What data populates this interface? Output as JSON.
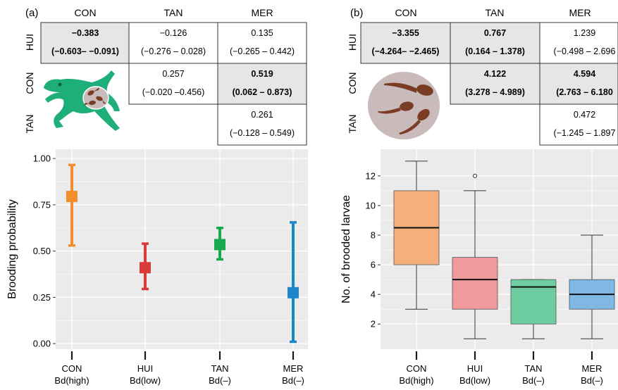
{
  "panel_a": {
    "label": "(a)",
    "col_headers": [
      "CON",
      "TAN",
      "MER"
    ],
    "row_headers": [
      "HUI",
      "CON",
      "TAN"
    ],
    "cells": [
      {
        "row": 0,
        "col": 0,
        "value": "−0.383",
        "ci": "(−0.603– −0.091)",
        "bold": true,
        "shaded": true
      },
      {
        "row": 0,
        "col": 1,
        "value": "−0.126",
        "ci": "(−0.276 – 0.028)",
        "bold": false,
        "shaded": false
      },
      {
        "row": 0,
        "col": 2,
        "value": "0.135",
        "ci": "(−0.265 – 0.442)",
        "bold": false,
        "shaded": false
      },
      {
        "row": 1,
        "col": 1,
        "value": "0.257",
        "ci": "(−0.020 –0.456)",
        "bold": false,
        "shaded": false
      },
      {
        "row": 1,
        "col": 2,
        "value": "0.519",
        "ci": "(0.062 – 0.873)",
        "bold": true,
        "shaded": true
      },
      {
        "row": 2,
        "col": 2,
        "value": "0.261",
        "ci": "(−0.128 – 0.549)",
        "bold": false,
        "shaded": false
      }
    ]
  },
  "panel_b": {
    "label": "(b)",
    "col_headers": [
      "CON",
      "TAN",
      "MER"
    ],
    "row_headers": [
      "HUI",
      "CON",
      "TAN"
    ],
    "cells": [
      {
        "row": 0,
        "col": 0,
        "value": "−3.355",
        "ci": "(−4.264– −2.465)",
        "bold": true,
        "shaded": true
      },
      {
        "row": 0,
        "col": 1,
        "value": "0.767",
        "ci": "(0.164 – 1.378)",
        "bold": true,
        "shaded": true
      },
      {
        "row": 0,
        "col": 2,
        "value": "1.239",
        "ci": "(−0.498 – 2.696",
        "bold": false,
        "shaded": false
      },
      {
        "row": 1,
        "col": 1,
        "value": "4.122",
        "ci": "(3.278 – 4.989)",
        "bold": true,
        "shaded": true
      },
      {
        "row": 1,
        "col": 2,
        "value": "4.594",
        "ci": "(2.763 – 6.180",
        "bold": true,
        "shaded": true
      },
      {
        "row": 2,
        "col": 2,
        "value": "0.472",
        "ci": "(−1.245 – 1.897",
        "bold": false,
        "shaded": false
      }
    ]
  },
  "colors": {
    "CON": "#F28E2B",
    "HUI": "#D93A3A",
    "TAN": "#18A84E",
    "MER": "#1B87C9",
    "panel_bg": "#EBEBEB",
    "grid": "#ffffff",
    "frog": "#1DAE79",
    "egg_disc": "#C9BABC",
    "tadpole": "#7A3C24",
    "shade": "#E6E6E6"
  },
  "chart_data": [
    {
      "type": "scatter",
      "subtype": "point-with-error-bars",
      "ylabel": "Brooding probability",
      "xlabel": "",
      "ylim": [
        -0.03,
        1.05
      ],
      "yticks": [
        "0.00",
        "0.25",
        "0.50",
        "0.75",
        "1.00"
      ],
      "ytick_values": [
        0,
        0.25,
        0.5,
        0.75,
        1.0
      ],
      "categories": [
        {
          "name": "CON",
          "sub": "Bd(high)"
        },
        {
          "name": "HUI",
          "sub": "Bd(low)"
        },
        {
          "name": "TAN",
          "sub": "Bd(–)"
        },
        {
          "name": "MER",
          "sub": "Bd(–)"
        }
      ],
      "points": [
        {
          "category": "CON",
          "estimate": 0.795,
          "lower": 0.53,
          "upper": 0.965
        },
        {
          "category": "HUI",
          "estimate": 0.41,
          "lower": 0.295,
          "upper": 0.54
        },
        {
          "category": "TAN",
          "estimate": 0.535,
          "lower": 0.455,
          "upper": 0.625
        },
        {
          "category": "MER",
          "estimate": 0.275,
          "lower": 0.01,
          "upper": 0.655
        }
      ],
      "grid": true
    },
    {
      "type": "box",
      "ylabel": "No. of brooded larvae",
      "xlabel": "",
      "ylim": [
        0.3,
        13.8
      ],
      "yticks": [
        "2",
        "4",
        "6",
        "8",
        "10",
        "12"
      ],
      "ytick_values": [
        2,
        4,
        6,
        8,
        10,
        12
      ],
      "categories": [
        {
          "name": "CON",
          "sub": "Bd(high)"
        },
        {
          "name": "HUI",
          "sub": "Bd(low)"
        },
        {
          "name": "TAN",
          "sub": "Bd(–)"
        },
        {
          "name": "MER",
          "sub": "Bd(–)"
        }
      ],
      "boxes": [
        {
          "category": "CON",
          "min": 3,
          "q1": 6,
          "median": 8.5,
          "q3": 11,
          "max": 13,
          "outliers": []
        },
        {
          "category": "HUI",
          "min": 1,
          "q1": 3,
          "median": 5,
          "q3": 6.5,
          "max": 11,
          "outliers": [
            12
          ]
        },
        {
          "category": "TAN",
          "min": 1,
          "q1": 2,
          "median": 4.5,
          "q3": 5,
          "max": 5,
          "outliers": []
        },
        {
          "category": "MER",
          "min": 1,
          "q1": 3,
          "median": 4,
          "q3": 5,
          "max": 8,
          "outliers": []
        }
      ],
      "grid": true
    }
  ]
}
